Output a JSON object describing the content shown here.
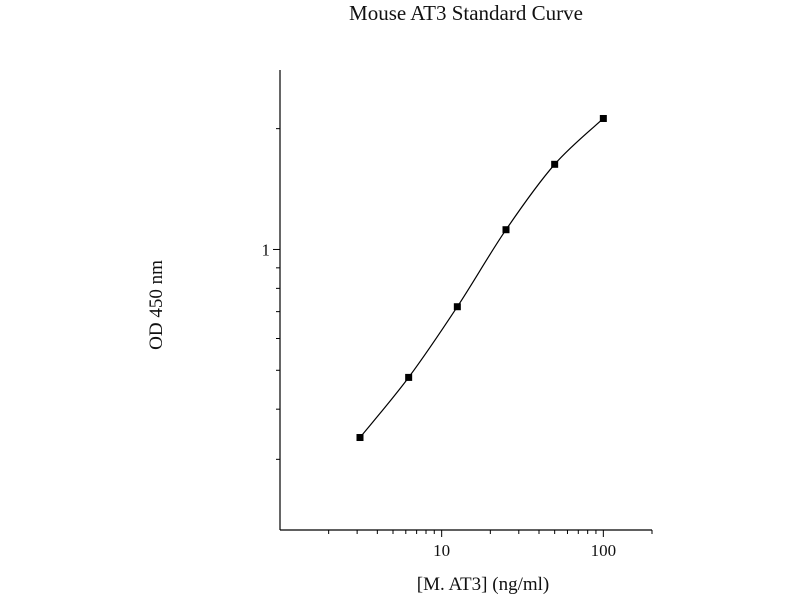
{
  "chart_data": {
    "type": "line",
    "title": "Mouse AT3 Standard Curve",
    "xlabel": "[M. AT3] (ng/ml)",
    "ylabel": "OD 450 nm",
    "x_scale": "log",
    "y_scale": "log",
    "xlim": [
      1,
      200
    ],
    "ylim": [
      0.2,
      2.8
    ],
    "x_tick_labels": [
      {
        "value": 10,
        "label": "10"
      },
      {
        "value": 100,
        "label": "100"
      }
    ],
    "y_tick_labels": [
      {
        "value": 1,
        "label": "1"
      }
    ],
    "grid": false,
    "series": [
      {
        "x": [
          3.125,
          6.25,
          12.5,
          25,
          50,
          100
        ],
        "y": [
          0.34,
          0.48,
          0.72,
          1.12,
          1.63,
          2.12
        ]
      }
    ],
    "colors": {
      "line": "#000000",
      "marker": "#000000",
      "axis": "#000000",
      "text": "#111111"
    }
  }
}
